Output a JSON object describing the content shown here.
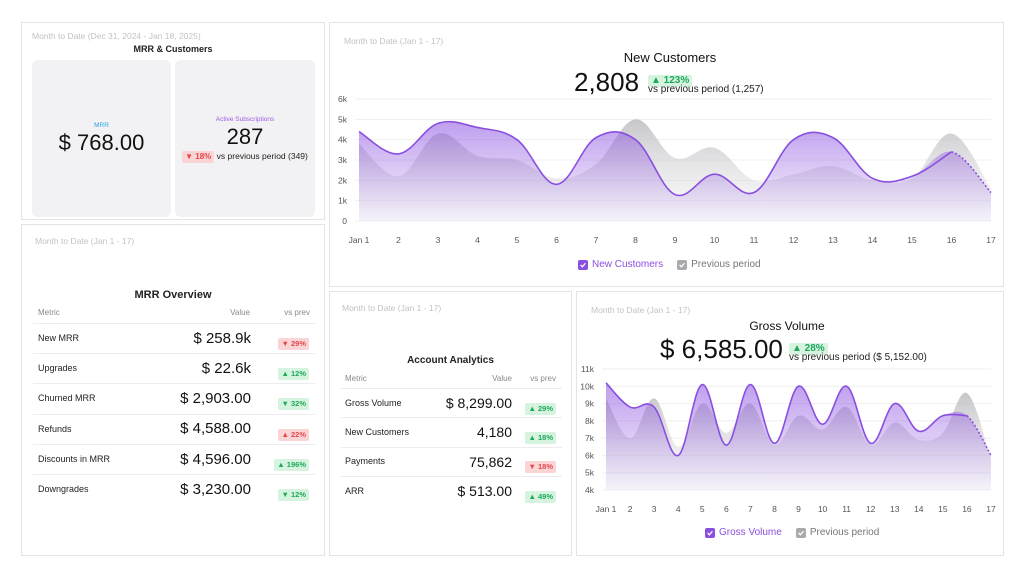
{
  "mrr_customers": {
    "period": "Month to Date (Dec 31, 2024 - Jan 18, 2025)",
    "title": "MRR & Customers",
    "mrr_label": "MRR",
    "mrr_value": "$ 768.00",
    "subs_label": "Active Subscriptions",
    "subs_value": "287",
    "subs_change": "▼ 18%",
    "subs_compare": "vs previous period (349)",
    "colors": {
      "mrr_label": "#28a5e0",
      "subs_label": "#9b5de5"
    }
  },
  "mrr_overview": {
    "period": "Month to Date (Jan 1 - 17)",
    "title": "MRR Overview",
    "headers": {
      "metric": "Metric",
      "value": "Value",
      "vs": "vs prev"
    },
    "rows": [
      {
        "metric": "New MRR",
        "value": "$ 258.9k",
        "vs": "▼ 29%",
        "dir": "down"
      },
      {
        "metric": "Upgrades",
        "value": "$ 22.6k",
        "vs": "▲ 12%",
        "dir": "up"
      },
      {
        "metric": "Churned MRR",
        "value": "$ 2,903.00",
        "vs": "▼ 32%",
        "dir": "up"
      },
      {
        "metric": "Refunds",
        "value": "$ 4,588.00",
        "vs": "▲ 22%",
        "dir": "down"
      },
      {
        "metric": "Discounts in MRR",
        "value": "$ 4,596.00",
        "vs": "▲ 196%",
        "dir": "up"
      },
      {
        "metric": "Downgrades",
        "value": "$ 3,230.00",
        "vs": "▼ 12%",
        "dir": "up"
      }
    ]
  },
  "new_customers": {
    "period": "Month to Date (Jan 1 - 17)",
    "title": "New Customers",
    "value": "2,808",
    "change": "▲ 123%",
    "compare": "vs previous period (1,257)",
    "legend": {
      "current": "New Customers",
      "previous": "Previous period"
    }
  },
  "account_analytics": {
    "period": "Month to Date (Jan 1 - 17)",
    "title": "Account Analytics",
    "headers": {
      "metric": "Metric",
      "value": "Value",
      "vs": "vs prev"
    },
    "rows": [
      {
        "metric": "Gross Volume",
        "value": "$ 8,299.00",
        "vs": "▲ 29%",
        "dir": "up"
      },
      {
        "metric": "New Customers",
        "value": "4,180",
        "vs": "▲ 18%",
        "dir": "up"
      },
      {
        "metric": "Payments",
        "value": "75,862",
        "vs": "▼ 18%",
        "dir": "down"
      },
      {
        "metric": "ARR",
        "value": "$ 513.00",
        "vs": "▲ 49%",
        "dir": "up"
      }
    ]
  },
  "gross_volume": {
    "period": "Month to Date (Jan 1 - 17)",
    "title": "Gross Volume",
    "value": "$ 6,585.00",
    "change": "▲ 28%",
    "compare": "vs previous period ($ 5,152.00)",
    "legend": {
      "current": "Gross Volume",
      "previous": "Previous period"
    }
  },
  "chart_data": [
    {
      "type": "area",
      "title": "New Customers",
      "x": [
        "Jan 1",
        "2",
        "3",
        "4",
        "5",
        "6",
        "7",
        "8",
        "9",
        "10",
        "11",
        "12",
        "13",
        "14",
        "15",
        "16",
        "17"
      ],
      "yticks": [
        "0",
        "1k",
        "2k",
        "3k",
        "4k",
        "5k",
        "6k"
      ],
      "ylim": [
        0,
        6000
      ],
      "series": [
        {
          "name": "New Customers",
          "values": [
            4400,
            3300,
            4800,
            4600,
            4000,
            1800,
            4100,
            4000,
            1300,
            2300,
            1400,
            4000,
            4100,
            2100,
            2200,
            3400,
            1400
          ]
        },
        {
          "name": "Previous period",
          "values": [
            3800,
            2200,
            4300,
            3200,
            3000,
            2100,
            2800,
            5000,
            3100,
            3600,
            2000,
            2300,
            2700,
            2000,
            2100,
            4300,
            1600
          ]
        }
      ],
      "colors": {
        "current": "#8a4fe0",
        "previous": "#c8c8cc"
      }
    },
    {
      "type": "area",
      "title": "Gross Volume",
      "x": [
        "Jan 1",
        "2",
        "3",
        "4",
        "5",
        "6",
        "7",
        "8",
        "9",
        "10",
        "11",
        "12",
        "13",
        "14",
        "15",
        "16",
        "17"
      ],
      "yticks": [
        "4k",
        "5k",
        "6k",
        "7k",
        "8k",
        "9k",
        "10k",
        "11k"
      ],
      "ylim": [
        4000,
        11000
      ],
      "series": [
        {
          "name": "Gross Volume",
          "values": [
            10200,
            8800,
            8800,
            6000,
            10100,
            6600,
            10100,
            6700,
            10000,
            7800,
            10000,
            6700,
            9000,
            7400,
            8300,
            8300,
            6000
          ]
        },
        {
          "name": "Previous period",
          "values": [
            9300,
            7000,
            9300,
            6500,
            9000,
            7300,
            9000,
            6600,
            8300,
            7500,
            8800,
            6600,
            7900,
            6900,
            7300,
            9600,
            5800
          ]
        }
      ],
      "colors": {
        "current": "#8a4fe0",
        "previous": "#c8c8cc"
      }
    }
  ]
}
